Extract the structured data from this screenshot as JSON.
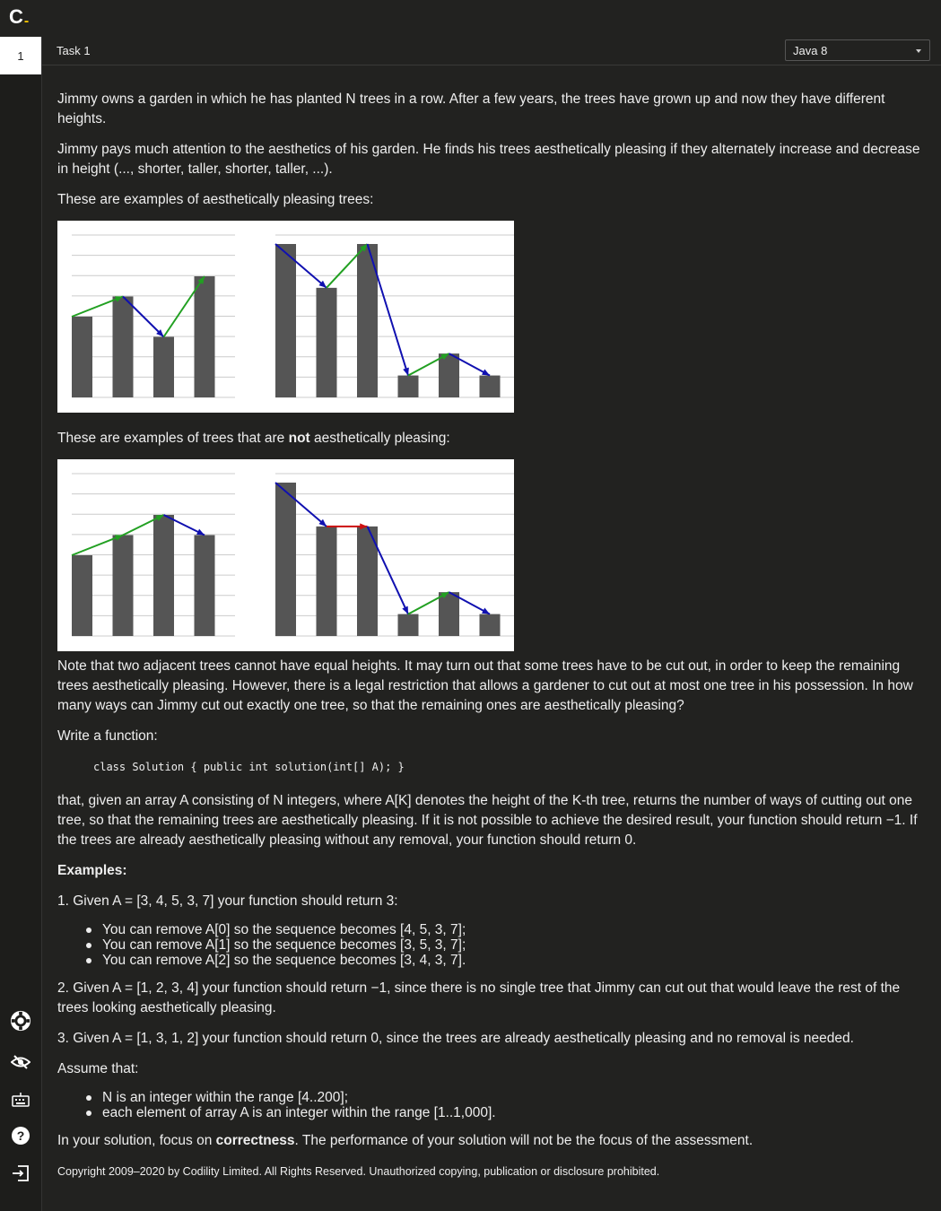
{
  "app": {
    "logo_letter": "C",
    "logo_dash": "-"
  },
  "left_tabs": [
    {
      "label": "1"
    }
  ],
  "task": {
    "title": "Task 1",
    "language": "Java 8"
  },
  "description": {
    "p1": "Jimmy owns a garden in which he has planted N trees in a row. After a few years, the trees have grown up and now they have different heights.",
    "p2": "Jimmy pays much attention to the aesthetics of his garden. He finds his trees aesthetically pleasing if they alternately increase and decrease in height (..., shorter, taller, shorter, taller, ...).",
    "p3": "These are examples of aesthetically pleasing trees:",
    "p4_pre": "These are examples of trees that are ",
    "p4_bold": "not",
    "p4_post": " aesthetically pleasing:",
    "p5": "Note that two adjacent trees cannot have equal heights. It may turn out that some trees have to be cut out, in order to keep the remaining trees aesthetically pleasing. However, there is a legal restriction that allows a gardener to cut out at most one tree in his possession. In how many ways can Jimmy cut out exactly one tree, so that the remaining ones are aesthetically pleasing?",
    "p6": "Write a function:",
    "code": "class Solution { public int solution(int[] A); }",
    "p7": "that, given an array A consisting of N integers, where A[K] denotes the height of the K-th tree, returns the number of ways of cutting out one tree, so that the remaining trees are aesthetically pleasing. If it is not possible to achieve the desired result, your function should return −1. If the trees are already aesthetically pleasing without any removal, your function should return 0.",
    "examples_heading": "Examples:",
    "ex1": "1. Given A = [3, 4, 5, 3, 7] your function should return 3:",
    "ex1_items": [
      "You can remove A[0] so the sequence becomes [4, 5, 3, 7];",
      "You can remove A[1] so the sequence becomes [3, 5, 3, 7];",
      "You can remove A[2] so the sequence becomes [3, 4, 3, 7]."
    ],
    "ex2": "2. Given A = [1, 2, 3, 4] your function should return −1, since there is no single tree that Jimmy can cut out that would leave the rest of the trees looking aesthetically pleasing.",
    "ex3": "3. Given A = [1, 3, 1, 2] your function should return 0, since the trees are already aesthetically pleasing and no removal is needed.",
    "assume": "Assume that:",
    "assume_items": [
      "N is an integer within the range [4..200];",
      "each element of array A is an integer within the range [1..1,000]."
    ],
    "focus_pre": "In your solution, focus on ",
    "focus_bold": "correctness",
    "focus_post": ". The performance of your solution will not be the focus of the assessment.",
    "copyright": "Copyright 2009–2020 by Codility Limited. All Rights Reserved. Unauthorized copying, publication or disclosure prohibited."
  },
  "figures": {
    "colors": {
      "bar": "#555555",
      "up": "#22a022",
      "down": "#1010b0",
      "equal": "#cc1010",
      "grid": "#cccccc"
    },
    "pleasing": [
      {
        "heights": [
          4,
          5,
          3,
          6
        ]
      },
      {
        "heights": [
          7,
          5,
          7,
          1,
          2,
          1
        ]
      }
    ],
    "not_pleasing": [
      {
        "heights": [
          4,
          5,
          6,
          5
        ]
      },
      {
        "heights": [
          7,
          5,
          5,
          1,
          2,
          1
        ]
      }
    ]
  },
  "side_icons": [
    "settings-icon",
    "eye-slash-icon",
    "keyboard-icon",
    "help-icon",
    "logout-icon"
  ]
}
